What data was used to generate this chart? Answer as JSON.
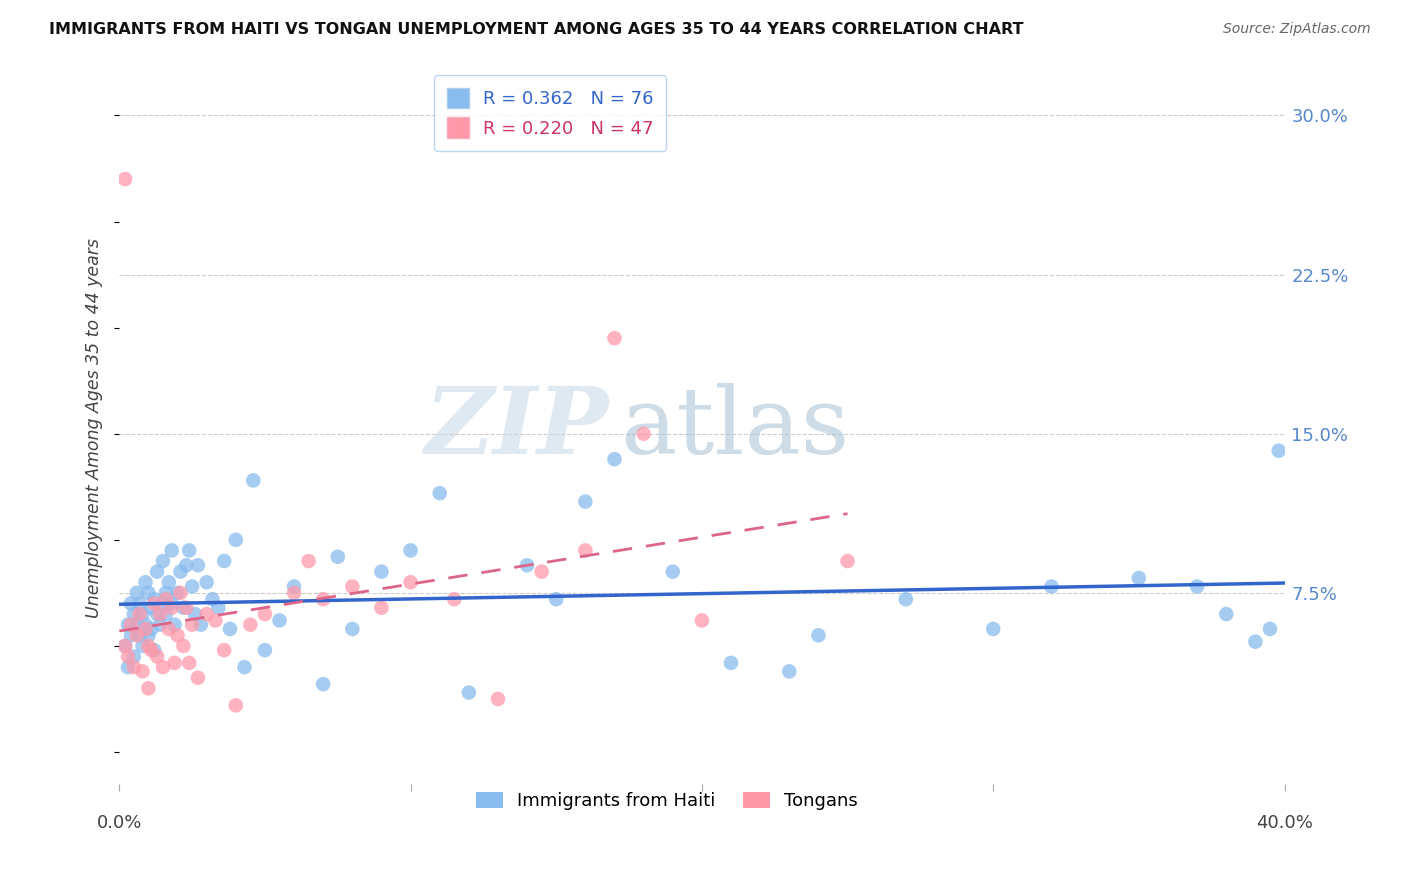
{
  "title": "IMMIGRANTS FROM HAITI VS TONGAN UNEMPLOYMENT AMONG AGES 35 TO 44 YEARS CORRELATION CHART",
  "source": "Source: ZipAtlas.com",
  "ylabel": "Unemployment Among Ages 35 to 44 years",
  "ytick_labels": [
    "",
    "7.5%",
    "15.0%",
    "22.5%",
    "30.0%"
  ],
  "ytick_values": [
    0.0,
    0.075,
    0.15,
    0.225,
    0.3
  ],
  "xlim": [
    0.0,
    0.4
  ],
  "ylim": [
    -0.015,
    0.32
  ],
  "haiti_R": 0.362,
  "haiti_N": 76,
  "tongan_R": 0.22,
  "tongan_N": 47,
  "haiti_color": "#88BBEE",
  "tongan_color": "#FF99AA",
  "haiti_line_color": "#3366CC",
  "tongan_line_color": "#DD6688",
  "legend_labels": [
    "Immigrants from Haiti",
    "Tongans"
  ],
  "watermark_zip": "ZIP",
  "watermark_atlas": "atlas",
  "watermark_color_zip": "#C8D8E8",
  "watermark_color_atlas": "#A8C8D8",
  "haiti_x": [
    0.002,
    0.003,
    0.003,
    0.004,
    0.004,
    0.005,
    0.005,
    0.006,
    0.006,
    0.007,
    0.007,
    0.008,
    0.008,
    0.009,
    0.009,
    0.01,
    0.01,
    0.011,
    0.011,
    0.012,
    0.012,
    0.013,
    0.013,
    0.014,
    0.015,
    0.015,
    0.016,
    0.016,
    0.017,
    0.018,
    0.018,
    0.019,
    0.02,
    0.021,
    0.022,
    0.023,
    0.024,
    0.025,
    0.026,
    0.027,
    0.028,
    0.03,
    0.032,
    0.034,
    0.036,
    0.038,
    0.04,
    0.043,
    0.046,
    0.05,
    0.055,
    0.06,
    0.07,
    0.075,
    0.08,
    0.09,
    0.1,
    0.11,
    0.12,
    0.14,
    0.15,
    0.16,
    0.17,
    0.19,
    0.21,
    0.23,
    0.24,
    0.27,
    0.3,
    0.32,
    0.35,
    0.37,
    0.38,
    0.39,
    0.395,
    0.398
  ],
  "haiti_y": [
    0.05,
    0.06,
    0.04,
    0.055,
    0.07,
    0.045,
    0.065,
    0.06,
    0.075,
    0.055,
    0.07,
    0.065,
    0.05,
    0.06,
    0.08,
    0.055,
    0.075,
    0.068,
    0.058,
    0.072,
    0.048,
    0.065,
    0.085,
    0.06,
    0.07,
    0.09,
    0.075,
    0.065,
    0.08,
    0.07,
    0.095,
    0.06,
    0.075,
    0.085,
    0.068,
    0.088,
    0.095,
    0.078,
    0.065,
    0.088,
    0.06,
    0.08,
    0.072,
    0.068,
    0.09,
    0.058,
    0.1,
    0.04,
    0.128,
    0.048,
    0.062,
    0.078,
    0.032,
    0.092,
    0.058,
    0.085,
    0.095,
    0.122,
    0.028,
    0.088,
    0.072,
    0.118,
    0.138,
    0.085,
    0.042,
    0.038,
    0.055,
    0.072,
    0.058,
    0.078,
    0.082,
    0.078,
    0.065,
    0.052,
    0.058,
    0.142
  ],
  "tongan_x": [
    0.002,
    0.002,
    0.003,
    0.004,
    0.005,
    0.006,
    0.007,
    0.008,
    0.009,
    0.01,
    0.01,
    0.011,
    0.012,
    0.013,
    0.014,
    0.015,
    0.016,
    0.017,
    0.018,
    0.019,
    0.02,
    0.021,
    0.022,
    0.023,
    0.024,
    0.025,
    0.027,
    0.03,
    0.033,
    0.036,
    0.04,
    0.045,
    0.05,
    0.06,
    0.065,
    0.07,
    0.08,
    0.09,
    0.1,
    0.115,
    0.13,
    0.145,
    0.16,
    0.17,
    0.18,
    0.2,
    0.25
  ],
  "tongan_y": [
    0.05,
    0.27,
    0.045,
    0.06,
    0.04,
    0.055,
    0.065,
    0.038,
    0.058,
    0.05,
    0.03,
    0.048,
    0.07,
    0.045,
    0.065,
    0.04,
    0.072,
    0.058,
    0.068,
    0.042,
    0.055,
    0.075,
    0.05,
    0.068,
    0.042,
    0.06,
    0.035,
    0.065,
    0.062,
    0.048,
    0.022,
    0.06,
    0.065,
    0.075,
    0.09,
    0.072,
    0.078,
    0.068,
    0.08,
    0.072,
    0.025,
    0.085,
    0.095,
    0.195,
    0.15,
    0.062,
    0.09
  ],
  "haiti_line_x": [
    0.0,
    0.4
  ],
  "haiti_line_y": [
    0.048,
    0.108
  ],
  "tongan_line_x": [
    0.0,
    0.25
  ],
  "tongan_line_y": [
    0.048,
    0.108
  ]
}
